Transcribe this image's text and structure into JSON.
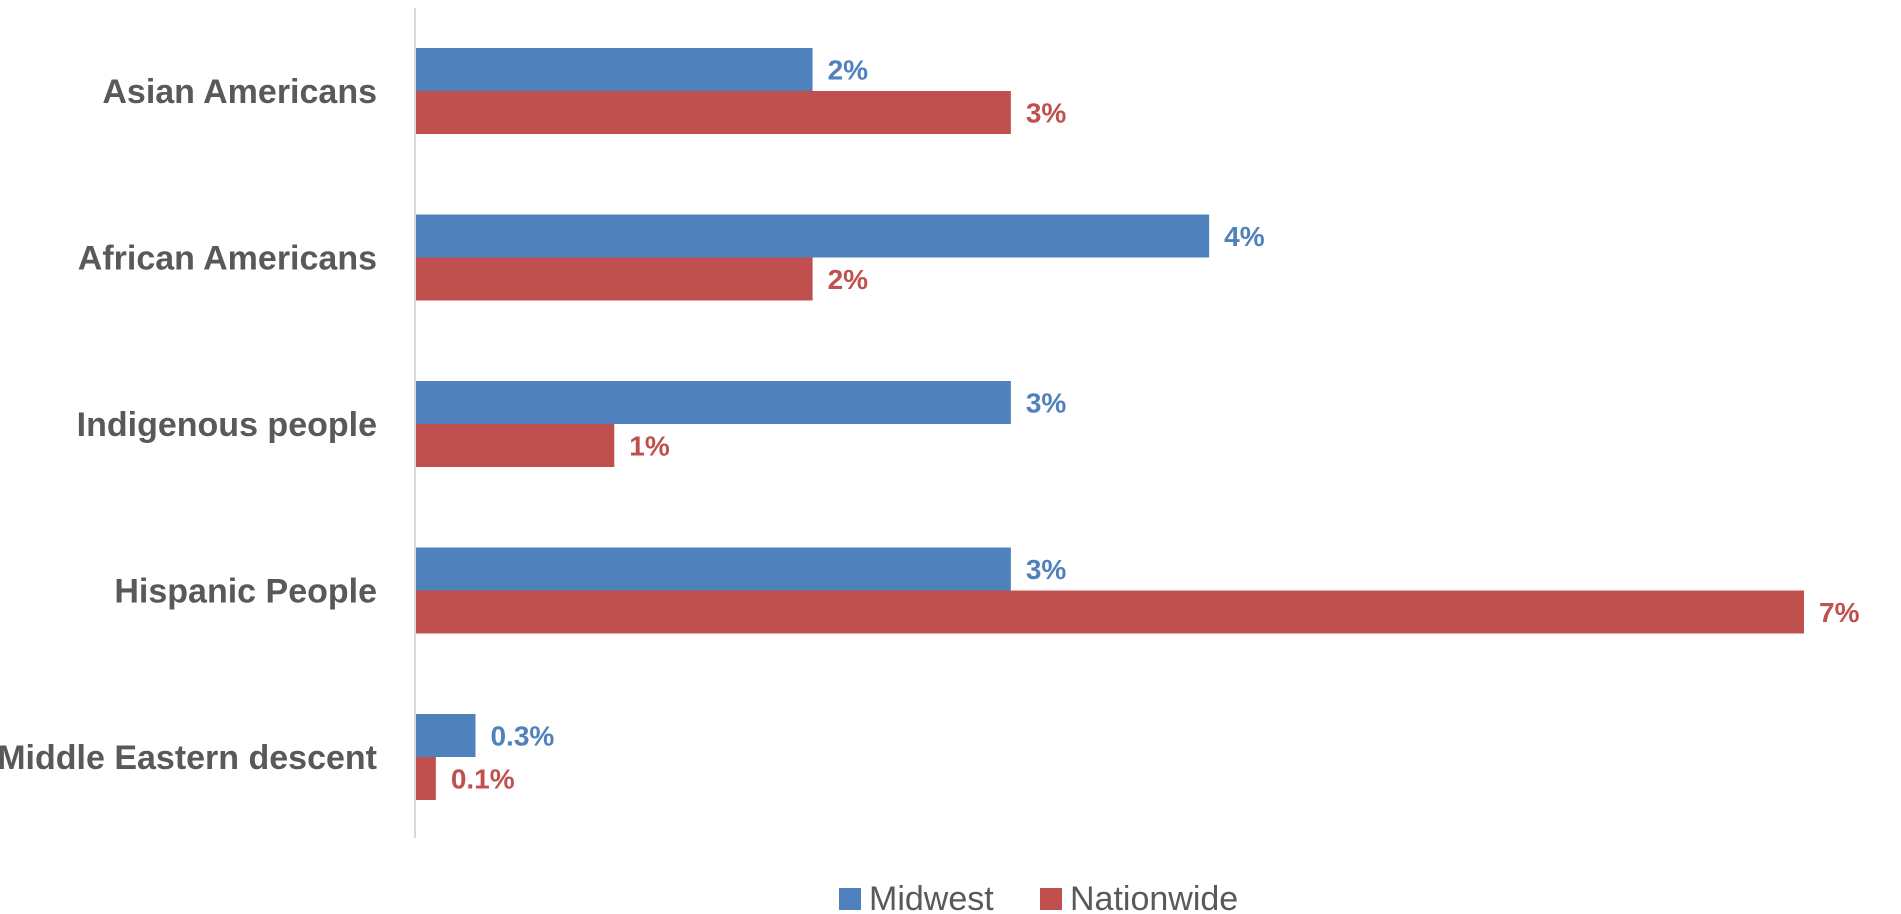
{
  "chart_data": {
    "type": "bar",
    "orientation": "horizontal",
    "categories": [
      "Asian Americans",
      "African Americans",
      "Indigenous people",
      "Hispanic People",
      "Middle Eastern descent"
    ],
    "series": [
      {
        "name": "Midwest",
        "color": "#4F81BD",
        "values": [
          2,
          4,
          3,
          3,
          0.3
        ],
        "labels": [
          "2%",
          "4%",
          "3%",
          "3%",
          "0.3%"
        ]
      },
      {
        "name": "Nationwide",
        "color": "#C0504D",
        "values": [
          3,
          2,
          1,
          7,
          0.1
        ],
        "labels": [
          "3%",
          "2%",
          "1%",
          "7%",
          "0.1%"
        ]
      }
    ],
    "value_unit": "%",
    "xlim": [
      0,
      7
    ],
    "grid": false,
    "legend_position": "bottom"
  }
}
